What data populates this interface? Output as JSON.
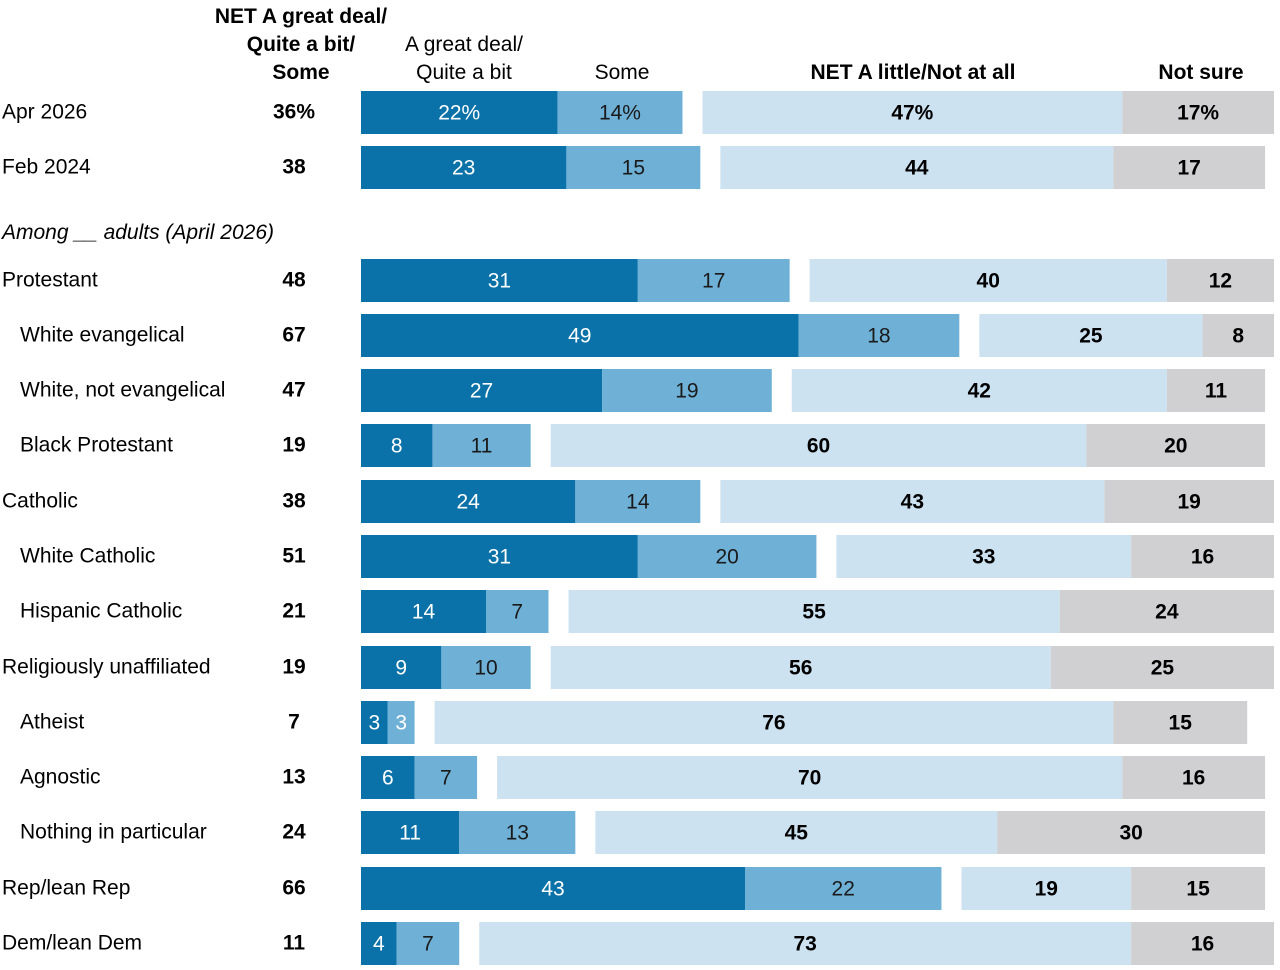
{
  "chart_data": {
    "type": "bar",
    "orientation": "horizontal",
    "stacked": true,
    "headers": {
      "net_positive": [
        "NET A great deal/",
        "Quite a bit/",
        "Some"
      ],
      "great_deal": [
        "A great deal/",
        "Quite a bit"
      ],
      "some": "Some",
      "net_negative": "NET A little/Not at all",
      "not_sure": "Not sure"
    },
    "section_label": "Among __ adults (April 2026)",
    "colors": {
      "great_deal": "#0a72a8",
      "some": "#6eb0d6",
      "net_negative": "#cde2f1",
      "not_sure": "#d0d0d2",
      "text_dark": "#000000",
      "text_light": "#ffffff"
    },
    "rows": [
      {
        "label": "Apr 2026",
        "indent": false,
        "net": "36%",
        "great_deal": 22,
        "some": 14,
        "little": 47,
        "not_sure": 17,
        "percent": true
      },
      {
        "label": "Feb 2024",
        "indent": false,
        "net": "38",
        "great_deal": 23,
        "some": 15,
        "little": 44,
        "not_sure": 17
      },
      {
        "label": "Protestant",
        "indent": false,
        "net": "48",
        "great_deal": 31,
        "some": 17,
        "little": 40,
        "not_sure": 12,
        "section_start": true
      },
      {
        "label": "White evangelical",
        "indent": true,
        "net": "67",
        "great_deal": 49,
        "some": 18,
        "little": 25,
        "not_sure": 8
      },
      {
        "label": "White, not evangelical",
        "indent": true,
        "net": "47",
        "great_deal": 27,
        "some": 19,
        "little": 42,
        "not_sure": 11
      },
      {
        "label": "Black Protestant",
        "indent": true,
        "net": "19",
        "great_deal": 8,
        "some": 11,
        "little": 60,
        "not_sure": 20
      },
      {
        "label": "Catholic",
        "indent": false,
        "net": "38",
        "great_deal": 24,
        "some": 14,
        "little": 43,
        "not_sure": 19
      },
      {
        "label": "White Catholic",
        "indent": true,
        "net": "51",
        "great_deal": 31,
        "some": 20,
        "little": 33,
        "not_sure": 16
      },
      {
        "label": "Hispanic Catholic",
        "indent": true,
        "net": "21",
        "great_deal": 14,
        "some": 7,
        "little": 55,
        "not_sure": 24
      },
      {
        "label": "Religiously unaffiliated",
        "indent": false,
        "net": "19",
        "great_deal": 9,
        "some": 10,
        "little": 56,
        "not_sure": 25
      },
      {
        "label": "Atheist",
        "indent": true,
        "net": "7",
        "great_deal": 3,
        "some": 3,
        "little": 76,
        "not_sure": 15
      },
      {
        "label": "Agnostic",
        "indent": true,
        "net": "13",
        "great_deal": 6,
        "some": 7,
        "little": 70,
        "not_sure": 16
      },
      {
        "label": "Nothing in particular",
        "indent": true,
        "net": "24",
        "great_deal": 11,
        "some": 13,
        "little": 45,
        "not_sure": 30
      },
      {
        "label": "Rep/lean Rep",
        "indent": false,
        "net": "66",
        "great_deal": 43,
        "some": 22,
        "little": 19,
        "not_sure": 15
      },
      {
        "label": "Dem/lean Dem",
        "indent": false,
        "net": "11",
        "great_deal": 4,
        "some": 7,
        "little": 73,
        "not_sure": 16
      }
    ]
  }
}
